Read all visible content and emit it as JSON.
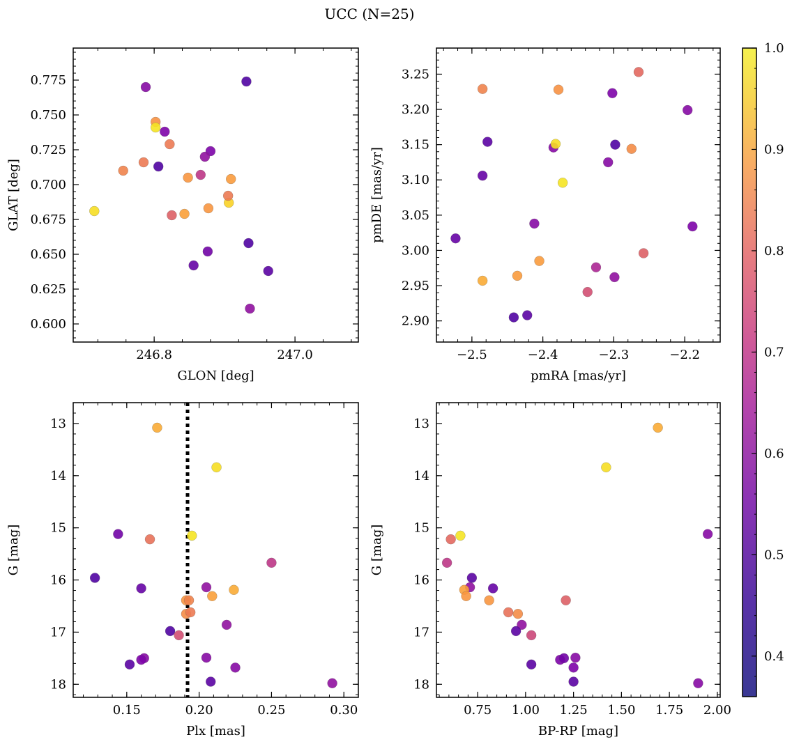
{
  "figure": {
    "title": "UCC (N=25)"
  },
  "colorbar": {
    "colormap": "plasma",
    "range": [
      0.36,
      1.0
    ],
    "ticks": [
      0.4,
      0.5,
      0.6,
      0.7,
      0.8,
      0.9,
      1.0
    ],
    "tick_labels": [
      "0.4",
      "0.5",
      "0.6",
      "0.7",
      "0.8",
      "0.9",
      "1.0"
    ]
  },
  "chart_data": [
    {
      "type": "scatter",
      "xlabel": "GLON [deg]",
      "ylabel": "GLAT [deg]",
      "xlim": [
        246.685,
        247.09
      ],
      "ylim": [
        0.587,
        0.798
      ],
      "y_inverted": false,
      "xticks": [
        246.8,
        247.0
      ],
      "xtick_labels": [
        "246.8",
        "247.0"
      ],
      "yticks": [
        0.6,
        0.625,
        0.65,
        0.675,
        0.7,
        0.725,
        0.75,
        0.775
      ],
      "ytick_labels": [
        "0.600",
        "0.625",
        "0.650",
        "0.675",
        "0.700",
        "0.725",
        "0.750",
        "0.775"
      ],
      "x": [
        246.931,
        246.788,
        246.815,
        246.802,
        246.822,
        246.756,
        246.785,
        246.806,
        246.88,
        246.934,
        246.962,
        246.872,
        246.866,
        246.906,
        246.877,
        246.843,
        246.848,
        246.909,
        246.905,
        246.876,
        246.856,
        246.825,
        246.715,
        246.802,
        246.936
      ],
      "y": [
        0.774,
        0.77,
        0.738,
        0.745,
        0.729,
        0.71,
        0.716,
        0.713,
        0.724,
        0.658,
        0.638,
        0.72,
        0.707,
        0.687,
        0.683,
        0.679,
        0.705,
        0.704,
        0.692,
        0.652,
        0.642,
        0.678,
        0.681,
        0.741,
        0.611
      ],
      "colors": [
        0.4,
        0.5,
        0.48,
        0.83,
        0.78,
        0.8,
        0.78,
        0.4,
        0.48,
        0.4,
        0.42,
        0.52,
        0.62,
        0.95,
        0.84,
        0.86,
        0.84,
        0.85,
        0.78,
        0.46,
        0.44,
        0.72,
        0.97,
        0.98,
        0.52
      ]
    },
    {
      "type": "scatter",
      "xlabel": "pmRA [mas/yr]",
      "ylabel": "pmDE [mas/yr]",
      "xlim": [
        -2.55,
        -2.15
      ],
      "ylim": [
        2.87,
        3.287
      ],
      "y_inverted": false,
      "xticks": [
        -2.5,
        -2.4,
        -2.3,
        -2.2
      ],
      "xtick_labels": [
        "−2.5",
        "−2.4",
        "−2.3",
        "−2.2"
      ],
      "yticks": [
        2.9,
        2.95,
        3.0,
        3.05,
        3.1,
        3.15,
        3.2,
        3.25
      ],
      "ytick_labels": [
        "2.90",
        "2.95",
        "3.00",
        "3.05",
        "3.10",
        "3.15",
        "3.20",
        "3.25"
      ],
      "x": [
        -2.485,
        -2.378,
        -2.265,
        -2.302,
        -2.196,
        -2.478,
        -2.385,
        -2.382,
        -2.298,
        -2.275,
        -2.308,
        -2.485,
        -2.372,
        -2.412,
        -2.523,
        -2.189,
        -2.258,
        -2.405,
        -2.325,
        -2.436,
        -2.485,
        -2.299,
        -2.337,
        -2.441,
        -2.422
      ],
      "y": [
        3.229,
        3.228,
        3.253,
        3.223,
        3.199,
        3.154,
        3.146,
        3.151,
        3.15,
        3.144,
        3.125,
        3.106,
        3.096,
        3.038,
        3.017,
        3.034,
        2.996,
        2.985,
        2.976,
        2.964,
        2.957,
        2.962,
        2.941,
        2.905,
        2.908
      ],
      "colors": [
        0.8,
        0.83,
        0.74,
        0.48,
        0.5,
        0.42,
        0.5,
        0.97,
        0.4,
        0.82,
        0.5,
        0.44,
        0.98,
        0.5,
        0.44,
        0.48,
        0.72,
        0.85,
        0.58,
        0.85,
        0.88,
        0.52,
        0.68,
        0.4,
        0.42
      ]
    },
    {
      "type": "scatter",
      "xlabel": "Plx [mas]",
      "ylabel": "G [mag]",
      "xlim": [
        0.113,
        0.31
      ],
      "ylim": [
        12.6,
        18.25
      ],
      "y_inverted": true,
      "xticks": [
        0.15,
        0.2,
        0.25,
        0.3
      ],
      "xtick_labels": [
        "0.15",
        "0.20",
        "0.25",
        "0.30"
      ],
      "yticks": [
        13,
        14,
        15,
        16,
        17,
        18
      ],
      "ytick_labels": [
        "13",
        "14",
        "15",
        "16",
        "17",
        "18"
      ],
      "vline": {
        "x": 0.192,
        "style": "dotted"
      },
      "x": [
        0.171,
        0.212,
        0.144,
        0.166,
        0.195,
        0.128,
        0.25,
        0.16,
        0.205,
        0.224,
        0.209,
        0.191,
        0.193,
        0.191,
        0.194,
        0.18,
        0.186,
        0.219,
        0.205,
        0.162,
        0.16,
        0.152,
        0.225,
        0.208,
        0.292
      ],
      "y": [
        13.08,
        13.84,
        15.12,
        15.22,
        15.15,
        15.96,
        15.67,
        16.16,
        16.14,
        16.19,
        16.31,
        16.39,
        16.39,
        16.65,
        16.62,
        16.98,
        17.06,
        16.86,
        17.49,
        17.5,
        17.53,
        17.62,
        17.68,
        17.95,
        17.98
      ],
      "colors": [
        0.88,
        0.97,
        0.46,
        0.76,
        0.98,
        0.4,
        0.62,
        0.44,
        0.52,
        0.88,
        0.86,
        0.84,
        0.8,
        0.82,
        0.78,
        0.4,
        0.68,
        0.52,
        0.5,
        0.5,
        0.48,
        0.42,
        0.5,
        0.42,
        0.52
      ]
    },
    {
      "type": "scatter",
      "xlabel": "BP-RP [mag]",
      "ylabel": "G [mag]",
      "xlim": [
        0.535,
        2.015
      ],
      "ylim": [
        12.6,
        18.25
      ],
      "y_inverted": true,
      "xticks": [
        0.75,
        1.0,
        1.25,
        1.5,
        1.75,
        2.0
      ],
      "xtick_labels": [
        "0.75",
        "1.00",
        "1.25",
        "1.50",
        "1.75",
        "2.00"
      ],
      "yticks": [
        13,
        14,
        15,
        16,
        17,
        18
      ],
      "ytick_labels": [
        "13",
        "14",
        "15",
        "16",
        "17",
        "18"
      ],
      "x": [
        1.69,
        1.42,
        1.95,
        0.61,
        0.66,
        0.59,
        0.72,
        0.71,
        0.68,
        0.83,
        0.69,
        0.81,
        1.21,
        0.91,
        0.96,
        0.98,
        0.95,
        1.03,
        1.03,
        1.18,
        1.2,
        1.26,
        1.25,
        1.25,
        1.9
      ],
      "y": [
        13.08,
        13.84,
        15.12,
        15.22,
        15.15,
        15.67,
        15.96,
        16.14,
        16.19,
        16.16,
        16.31,
        16.39,
        16.39,
        16.62,
        16.65,
        16.86,
        16.98,
        17.06,
        17.62,
        17.53,
        17.5,
        17.49,
        17.68,
        17.95,
        17.98
      ],
      "colors": [
        0.88,
        0.97,
        0.5,
        0.74,
        0.98,
        0.62,
        0.42,
        0.52,
        0.86,
        0.44,
        0.84,
        0.84,
        0.72,
        0.76,
        0.82,
        0.52,
        0.42,
        0.66,
        0.42,
        0.48,
        0.46,
        0.5,
        0.48,
        0.42,
        0.5
      ]
    }
  ]
}
